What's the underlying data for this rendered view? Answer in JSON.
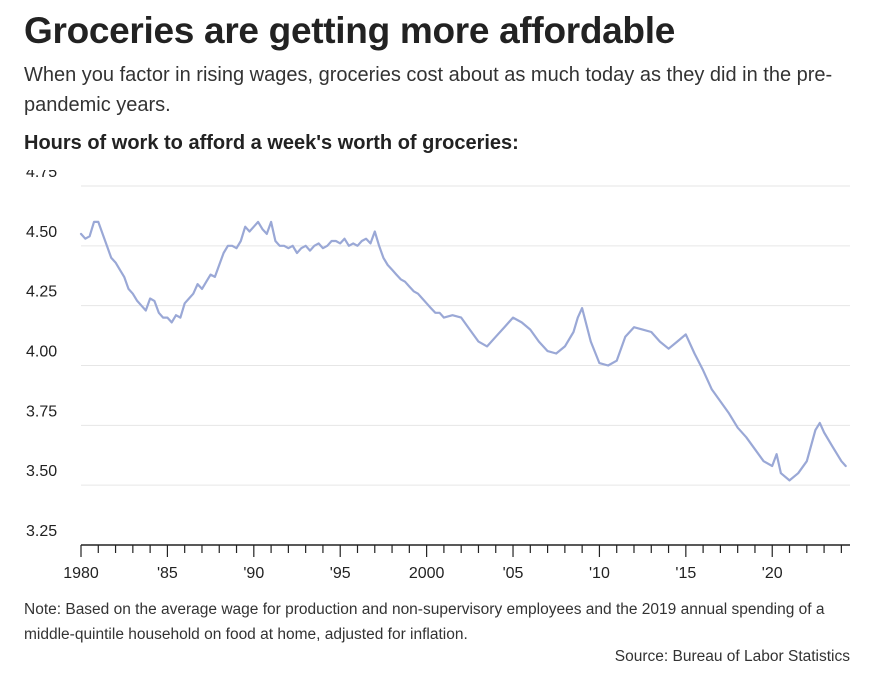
{
  "header": {
    "title": "Groceries are getting more affordable",
    "subtitle": "When you factor in rising wages, groceries cost about as much today as they did in the pre-pandemic years.",
    "chart_label": "Hours of work to afford a week's worth of groceries:"
  },
  "footer": {
    "note": "Note: Based on the average wage for production and non-supervisory employees and the 2019 annual spending of a middle-quintile household on food at home, adjusted for inflation.",
    "source": "Source: Bureau of Labor Statistics"
  },
  "colors": {
    "line": "#9aa8d6",
    "grid": "#e6e6e6",
    "axis": "#222222",
    "text": "#222222"
  },
  "chart_data": {
    "type": "line",
    "title": "Hours of work to afford a week's worth of groceries:",
    "xlabel": "",
    "ylabel": "",
    "xlim": [
      1980,
      2024.5
    ],
    "ylim": [
      3.25,
      4.75
    ],
    "grid": true,
    "y_ticks": [
      3.25,
      3.5,
      3.75,
      4.0,
      4.25,
      4.5,
      4.75
    ],
    "y_tick_labels": [
      "3.25",
      "3.50",
      "3.75",
      "4.00",
      "4.25",
      "4.50",
      "4.75"
    ],
    "x_ticks": [
      1980,
      1985,
      1990,
      1995,
      2000,
      2005,
      2010,
      2015,
      2020
    ],
    "x_tick_labels": [
      "1980",
      "'85",
      "'90",
      "'95",
      "2000",
      "'05",
      "'10",
      "'15",
      "'20"
    ],
    "x_minor_ticks_per_year": true,
    "series": [
      {
        "x": [
          1980.0,
          1980.25,
          1980.5,
          1980.75,
          1981.0,
          1981.25,
          1981.5,
          1981.75,
          1982.0,
          1982.25,
          1982.5,
          1982.75,
          1983.0,
          1983.25,
          1983.5,
          1983.75,
          1984.0,
          1984.25,
          1984.5,
          1984.75,
          1985.0,
          1985.25,
          1985.5,
          1985.75,
          1986.0,
          1986.25,
          1986.5,
          1986.75,
          1987.0,
          1987.25,
          1987.5,
          1987.75,
          1988.0,
          1988.25,
          1988.5,
          1988.75,
          1989.0,
          1989.25,
          1989.5,
          1989.75,
          1990.0,
          1990.25,
          1990.5,
          1990.75,
          1991.0,
          1991.25,
          1991.5,
          1991.75,
          1992.0,
          1992.25,
          1992.5,
          1992.75,
          1993.0,
          1993.25,
          1993.5,
          1993.75,
          1994.0,
          1994.25,
          1994.5,
          1994.75,
          1995.0,
          1995.25,
          1995.5,
          1995.75,
          1996.0,
          1996.25,
          1996.5,
          1996.75,
          1997.0,
          1997.25,
          1997.5,
          1997.75,
          1998.0,
          1998.25,
          1998.5,
          1998.75,
          1999.0,
          1999.25,
          1999.5,
          1999.75,
          2000.0,
          2000.25,
          2000.5,
          2000.75,
          2001.0,
          2001.5,
          2002.0,
          2002.5,
          2003.0,
          2003.5,
          2004.0,
          2004.5,
          2005.0,
          2005.5,
          2006.0,
          2006.5,
          2007.0,
          2007.5,
          2008.0,
          2008.5,
          2008.75,
          2009.0,
          2009.5,
          2010.0,
          2010.5,
          2011.0,
          2011.5,
          2012.0,
          2012.5,
          2013.0,
          2013.5,
          2014.0,
          2014.5,
          2015.0,
          2015.5,
          2016.0,
          2016.5,
          2017.0,
          2017.5,
          2018.0,
          2018.5,
          2019.0,
          2019.5,
          2020.0,
          2020.25,
          2020.5,
          2021.0,
          2021.5,
          2022.0,
          2022.5,
          2022.75,
          2023.0,
          2023.5,
          2024.0,
          2024.25
        ],
        "values": [
          4.55,
          4.53,
          4.54,
          4.6,
          4.6,
          4.55,
          4.5,
          4.45,
          4.43,
          4.4,
          4.37,
          4.32,
          4.3,
          4.27,
          4.25,
          4.23,
          4.28,
          4.27,
          4.22,
          4.2,
          4.2,
          4.18,
          4.21,
          4.2,
          4.26,
          4.28,
          4.3,
          4.34,
          4.32,
          4.35,
          4.38,
          4.37,
          4.42,
          4.47,
          4.5,
          4.5,
          4.49,
          4.52,
          4.58,
          4.56,
          4.58,
          4.6,
          4.57,
          4.55,
          4.6,
          4.52,
          4.5,
          4.5,
          4.49,
          4.5,
          4.47,
          4.49,
          4.5,
          4.48,
          4.5,
          4.51,
          4.49,
          4.5,
          4.52,
          4.52,
          4.51,
          4.53,
          4.5,
          4.51,
          4.5,
          4.52,
          4.53,
          4.51,
          4.56,
          4.5,
          4.45,
          4.42,
          4.4,
          4.38,
          4.36,
          4.35,
          4.33,
          4.31,
          4.3,
          4.28,
          4.26,
          4.24,
          4.22,
          4.22,
          4.2,
          4.21,
          4.2,
          4.15,
          4.1,
          4.08,
          4.12,
          4.16,
          4.2,
          4.18,
          4.15,
          4.1,
          4.06,
          4.05,
          4.08,
          4.14,
          4.2,
          4.24,
          4.1,
          4.01,
          4.0,
          4.02,
          4.12,
          4.16,
          4.15,
          4.14,
          4.1,
          4.07,
          4.1,
          4.13,
          4.05,
          3.98,
          3.9,
          3.85,
          3.8,
          3.74,
          3.7,
          3.65,
          3.6,
          3.58,
          3.63,
          3.55,
          3.52,
          3.55,
          3.6,
          3.73,
          3.76,
          3.72,
          3.66,
          3.6,
          3.58
        ]
      }
    ]
  }
}
